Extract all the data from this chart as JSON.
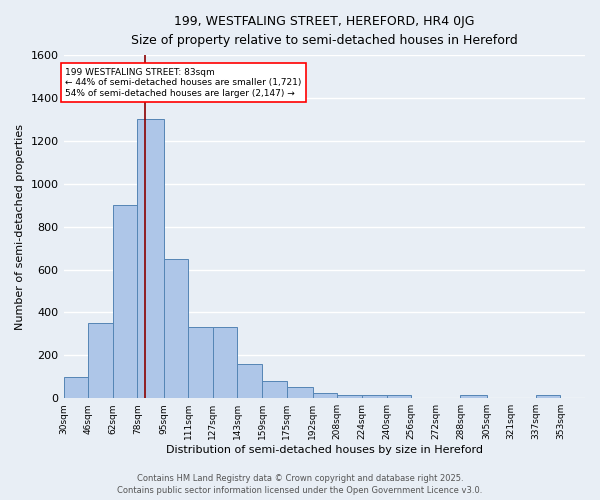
{
  "title": "199, WESTFALING STREET, HEREFORD, HR4 0JG",
  "subtitle": "Size of property relative to semi-detached houses in Hereford",
  "xlabel": "Distribution of semi-detached houses by size in Hereford",
  "ylabel": "Number of semi-detached properties",
  "categories": [
    "30sqm",
    "46sqm",
    "62sqm",
    "78sqm",
    "95sqm",
    "111sqm",
    "127sqm",
    "143sqm",
    "159sqm",
    "175sqm",
    "192sqm",
    "208sqm",
    "224sqm",
    "240sqm",
    "256sqm",
    "272sqm",
    "288sqm",
    "305sqm",
    "321sqm",
    "337sqm",
    "353sqm"
  ],
  "values": [
    100,
    350,
    900,
    1300,
    650,
    330,
    330,
    160,
    80,
    50,
    25,
    15,
    15,
    15,
    0,
    0,
    15,
    0,
    0,
    15,
    0
  ],
  "bar_color": "#aec6e8",
  "bar_edge_color": "#5585b5",
  "background_color": "#e8eef5",
  "grid_color": "#ffffff",
  "ylim": [
    0,
    1600
  ],
  "yticks": [
    0,
    200,
    400,
    600,
    800,
    1000,
    1200,
    1400,
    1600
  ],
  "property_label": "199 WESTFALING STREET: 83sqm",
  "pct_smaller": 44,
  "n_smaller": 1721,
  "pct_larger": 54,
  "n_larger": 2147,
  "redline_x": 83,
  "bin_edges": [
    30,
    46,
    62,
    78,
    95,
    111,
    127,
    143,
    159,
    175,
    192,
    208,
    224,
    240,
    256,
    272,
    288,
    305,
    321,
    337,
    353,
    369
  ],
  "footer_line1": "Contains HM Land Registry data © Crown copyright and database right 2025.",
  "footer_line2": "Contains public sector information licensed under the Open Government Licence v3.0."
}
